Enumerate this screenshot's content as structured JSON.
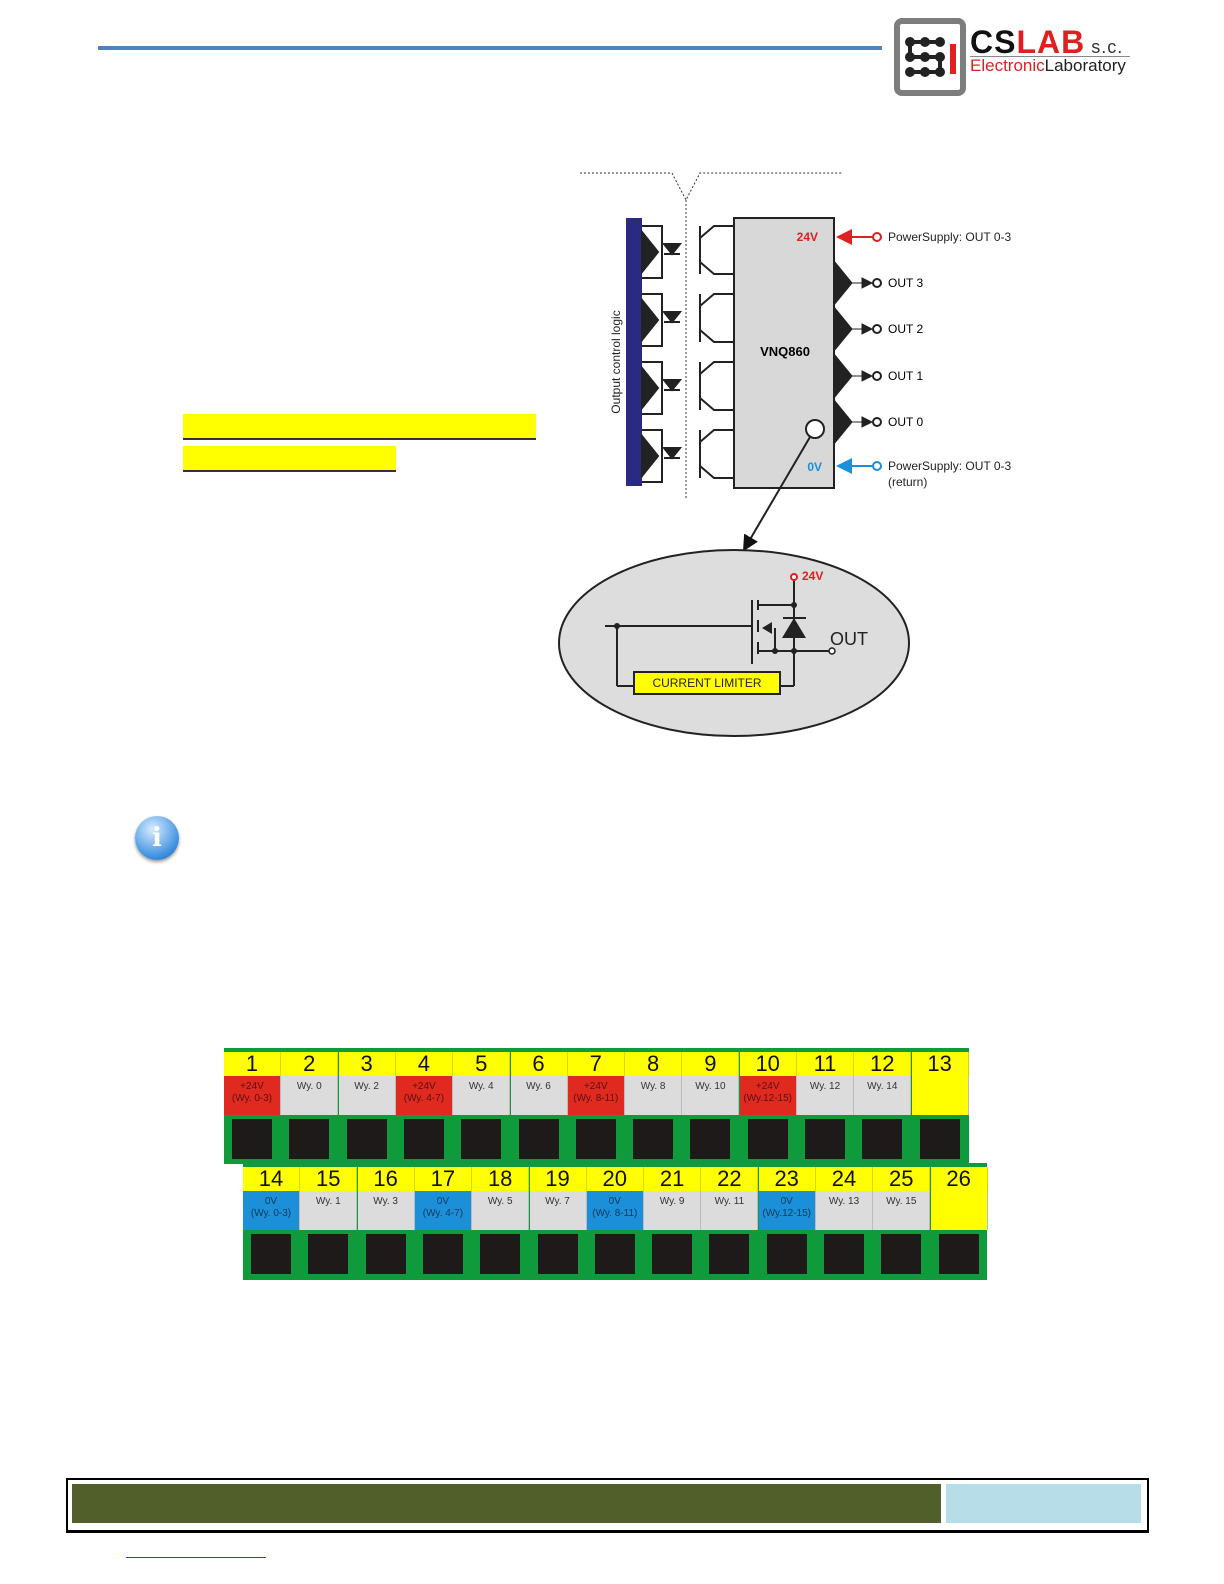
{
  "header": {
    "logo": {
      "brand_cs": "CS",
      "brand_lab": "LAB",
      "suffix": "s.c.",
      "subtitle_a": "Electronic",
      "subtitle_b": "Laboratory"
    }
  },
  "diagram": {
    "side_label": "Output control logic",
    "chip": "VNQ860",
    "v24": "24V",
    "v0": "0V",
    "power_in": "PowerSupply: OUT 0-3",
    "power_return": "PowerSupply: OUT 0-3",
    "return_note": "(return)",
    "outputs": [
      "OUT 3",
      "OUT 2",
      "OUT 1",
      "OUT 0"
    ],
    "detail": {
      "v24": "24V",
      "out": "OUT",
      "limiter": "CURRENT LIMITER"
    },
    "colors": {
      "supply": "#e02020",
      "return": "#1b8fd8",
      "logic_bar": "#2a2a80"
    }
  },
  "info_icon": "info-icon",
  "connector": {
    "row1": [
      {
        "n": "1",
        "l1": "+24V",
        "l2": "(Wy. 0-3)",
        "c": "red"
      },
      {
        "n": "2",
        "l1": "Wy. 0",
        "l2": "",
        "c": "gray"
      },
      {
        "n": "3",
        "l1": "Wy. 2",
        "l2": "",
        "c": "gray"
      },
      {
        "n": "4",
        "l1": "+24V",
        "l2": "(Wy. 4-7)",
        "c": "red"
      },
      {
        "n": "5",
        "l1": "Wy. 4",
        "l2": "",
        "c": "gray"
      },
      {
        "n": "6",
        "l1": "Wy. 6",
        "l2": "",
        "c": "gray"
      },
      {
        "n": "7",
        "l1": "+24V",
        "l2": "(Wy. 8-11)",
        "c": "red"
      },
      {
        "n": "8",
        "l1": "Wy. 8",
        "l2": "",
        "c": "gray"
      },
      {
        "n": "9",
        "l1": "Wy. 10",
        "l2": "",
        "c": "gray"
      },
      {
        "n": "10",
        "l1": "+24V",
        "l2": "(Wy.12-15)",
        "c": "red"
      },
      {
        "n": "11",
        "l1": "Wy. 12",
        "l2": "",
        "c": "gray"
      },
      {
        "n": "12",
        "l1": "Wy. 14",
        "l2": "",
        "c": "gray"
      },
      {
        "n": "13",
        "l1": "",
        "l2": "",
        "c": "yellow"
      }
    ],
    "row2": [
      {
        "n": "14",
        "l1": "0V",
        "l2": "(Wy. 0-3)",
        "c": "blue"
      },
      {
        "n": "15",
        "l1": "Wy. 1",
        "l2": "",
        "c": "gray"
      },
      {
        "n": "16",
        "l1": "Wy. 3",
        "l2": "",
        "c": "gray"
      },
      {
        "n": "17",
        "l1": "0V",
        "l2": "(Wy. 4-7)",
        "c": "blue"
      },
      {
        "n": "18",
        "l1": "Wy. 5",
        "l2": "",
        "c": "gray"
      },
      {
        "n": "19",
        "l1": "Wy. 7",
        "l2": "",
        "c": "gray"
      },
      {
        "n": "20",
        "l1": "0V",
        "l2": "(Wy. 8-11)",
        "c": "blue"
      },
      {
        "n": "21",
        "l1": "Wy. 9",
        "l2": "",
        "c": "gray"
      },
      {
        "n": "22",
        "l1": "Wy. 11",
        "l2": "",
        "c": "gray"
      },
      {
        "n": "23",
        "l1": "0V",
        "l2": "(Wy.12-15)",
        "c": "blue"
      },
      {
        "n": "24",
        "l1": "Wy. 13",
        "l2": "",
        "c": "gray"
      },
      {
        "n": "25",
        "l1": "Wy. 15",
        "l2": "",
        "c": "gray"
      },
      {
        "n": "26",
        "l1": "",
        "l2": "",
        "c": "yellow"
      }
    ]
  }
}
